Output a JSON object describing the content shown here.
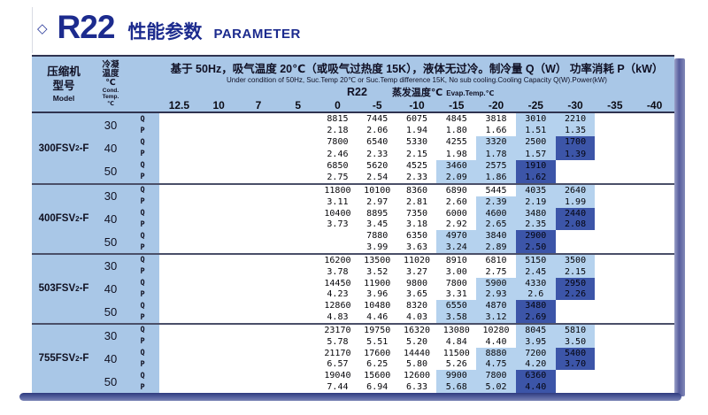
{
  "title": {
    "diamond": "◇",
    "r22": "R22",
    "cn": "性能参数",
    "en": "PARAMETER"
  },
  "header": {
    "model_col": {
      "line1": "压缩机",
      "line2": "型号",
      "line3": "Model"
    },
    "cond_col": {
      "line1": "冷凝",
      "line2": "温度",
      "line3": "℃",
      "line4": "Cond.",
      "line5": "Temp.",
      "line6": "℃"
    },
    "condition_cn": "基于 50Hz，吸气温度 20℃（或吸气过热度 15K），液体无过冷。制冷量 Q（W）  功率消耗 P（kW）",
    "condition_en": "Under condition of 50Hz, Suc.Temp 20℃ or Suc.Temp difference 15K, No sub cooling.Cooling Capacity Q(W).Power(kW)",
    "refrigerant": "R22",
    "evap_cn": "蒸发温度℃",
    "evap_en": "Evap.Temp.℃",
    "evap_temps": [
      "12.5",
      "10",
      "7",
      "5",
      "0",
      "-5",
      "-10",
      "-15",
      "-20",
      "-25",
      "-30",
      "-35",
      "-40"
    ]
  },
  "colors": {
    "panel_blue": "#a9c7e7",
    "highlight_light": "#b5d2ee",
    "highlight_dark": "#3c55a8",
    "title_navy": "#1c2b8e"
  },
  "row_labels": {
    "q": "Q",
    "p": "P"
  },
  "models": [
    {
      "name_pre": "300FSV",
      "name_sub": "2",
      "name_post": "-F",
      "groups": [
        {
          "cond": "30",
          "q": {
            "start": 4,
            "vals": [
              "8815",
              "7445",
              "6075",
              "4845",
              "3818",
              "3010",
              "2210"
            ],
            "light": [
              9,
              10
            ],
            "dark": null
          },
          "p": {
            "start": 4,
            "vals": [
              "2.18",
              "2.06",
              "1.94",
              "1.80",
              "1.66",
              "1.51",
              "1.35"
            ],
            "light": [
              9,
              10
            ],
            "dark": null
          }
        },
        {
          "cond": "40",
          "q": {
            "start": 4,
            "vals": [
              "7800",
              "6540",
              "5330",
              "4255",
              "3320",
              "2500",
              "1700"
            ],
            "light": [
              8,
              9
            ],
            "dark": 10
          },
          "p": {
            "start": 4,
            "vals": [
              "2.46",
              "2.33",
              "2.15",
              "1.98",
              "1.78",
              "1.57",
              "1.39"
            ],
            "light": [
              8,
              9
            ],
            "dark": 10
          }
        },
        {
          "cond": "50",
          "q": {
            "start": 4,
            "vals": [
              "6850",
              "5620",
              "4525",
              "3460",
              "2575",
              "1910"
            ],
            "light": [
              7,
              8
            ],
            "dark": 9
          },
          "p": {
            "start": 4,
            "vals": [
              "2.75",
              "2.54",
              "2.33",
              "2.09",
              "1.86",
              "1.62"
            ],
            "light": [
              7,
              8
            ],
            "dark": 9
          }
        }
      ]
    },
    {
      "name_pre": "400FSV",
      "name_sub": "2",
      "name_post": "-F",
      "groups": [
        {
          "cond": "30",
          "q": {
            "start": 4,
            "vals": [
              "11800",
              "10100",
              "8360",
              "6890",
              "5445",
              "4035",
              "2640"
            ],
            "light": [
              9,
              10
            ],
            "dark": null
          },
          "p": {
            "start": 4,
            "vals": [
              "3.11",
              "2.97",
              "2.81",
              "2.60",
              "2.39",
              "2.19",
              "1.99"
            ],
            "light": [
              8,
              10
            ],
            "dark": null
          }
        },
        {
          "cond": "40",
          "q": {
            "start": 4,
            "vals": [
              "10400",
              "8895",
              "7350",
              "6000",
              "4600",
              "3480",
              "2440"
            ],
            "light": [
              8,
              9
            ],
            "dark": 10
          },
          "p": {
            "start": 4,
            "vals": [
              "3.73",
              "3.45",
              "3.18",
              "2.92",
              "2.65",
              "2.35",
              "2.08"
            ],
            "light": [
              8,
              9
            ],
            "dark": 10
          }
        },
        {
          "cond": "50",
          "q": {
            "start": 5,
            "vals": [
              "7880",
              "6350",
              "4970",
              "3840",
              "2900"
            ],
            "light": [
              7,
              8
            ],
            "dark": 9
          },
          "p": {
            "start": 5,
            "vals": [
              "3.99",
              "3.63",
              "3.24",
              "2.89",
              "2.50"
            ],
            "light": [
              7,
              8
            ],
            "dark": 9
          }
        }
      ]
    },
    {
      "name_pre": "503FSV",
      "name_sub": "2",
      "name_post": "-F",
      "groups": [
        {
          "cond": "30",
          "q": {
            "start": 4,
            "vals": [
              "16200",
              "13500",
              "11020",
              "8910",
              "6810",
              "5150",
              "3500"
            ],
            "light": [
              9,
              10
            ],
            "dark": null
          },
          "p": {
            "start": 4,
            "vals": [
              "3.78",
              "3.52",
              "3.27",
              "3.00",
              "2.75",
              "2.45",
              "2.15"
            ],
            "light": [
              9,
              10
            ],
            "dark": null
          }
        },
        {
          "cond": "40",
          "q": {
            "start": 4,
            "vals": [
              "14450",
              "11900",
              "9800",
              "7800",
              "5900",
              "4330",
              "2950"
            ],
            "light": [
              8,
              9
            ],
            "dark": 10
          },
          "p": {
            "start": 4,
            "vals": [
              "4.23",
              "3.96",
              "3.65",
              "3.31",
              "2.93",
              "2.6",
              "2.26"
            ],
            "light": [
              8,
              9
            ],
            "dark": 10
          }
        },
        {
          "cond": "50",
          "q": {
            "start": 4,
            "vals": [
              "12860",
              "10480",
              "8320",
              "6550",
              "4870",
              "3480"
            ],
            "light": [
              7,
              8
            ],
            "dark": 9
          },
          "p": {
            "start": 4,
            "vals": [
              "4.83",
              "4.46",
              "4.03",
              "3.58",
              "3.12",
              "2.69"
            ],
            "light": [
              7,
              8
            ],
            "dark": 9
          }
        }
      ]
    },
    {
      "name_pre": "755FSV",
      "name_sub": "2",
      "name_post": "-F",
      "groups": [
        {
          "cond": "30",
          "q": {
            "start": 4,
            "vals": [
              "23170",
              "19750",
              "16320",
              "13080",
              "10280",
              "8045",
              "5810"
            ],
            "light": [
              9,
              10
            ],
            "dark": null
          },
          "p": {
            "start": 4,
            "vals": [
              "5.78",
              "5.51",
              "5.20",
              "4.84",
              "4.40",
              "3.95",
              "3.50"
            ],
            "light": [
              9,
              10
            ],
            "dark": null
          }
        },
        {
          "cond": "40",
          "q": {
            "start": 4,
            "vals": [
              "21170",
              "17600",
              "14440",
              "11500",
              "8880",
              "7200",
              "5400"
            ],
            "light": [
              8,
              9
            ],
            "dark": 10
          },
          "p": {
            "start": 4,
            "vals": [
              "6.57",
              "6.25",
              "5.80",
              "5.26",
              "4.75",
              "4.20",
              "3.70"
            ],
            "light": [
              8,
              9
            ],
            "dark": 10
          }
        },
        {
          "cond": "50",
          "q": {
            "start": 4,
            "vals": [
              "19040",
              "15600",
              "12600",
              "9900",
              "7800",
              "6360"
            ],
            "light": [
              7,
              8
            ],
            "dark": 9
          },
          "p": {
            "start": 4,
            "vals": [
              "7.44",
              "6.94",
              "6.33",
              "5.68",
              "5.02",
              "4.40"
            ],
            "light": [
              7,
              8
            ],
            "dark": 9
          }
        }
      ]
    }
  ]
}
